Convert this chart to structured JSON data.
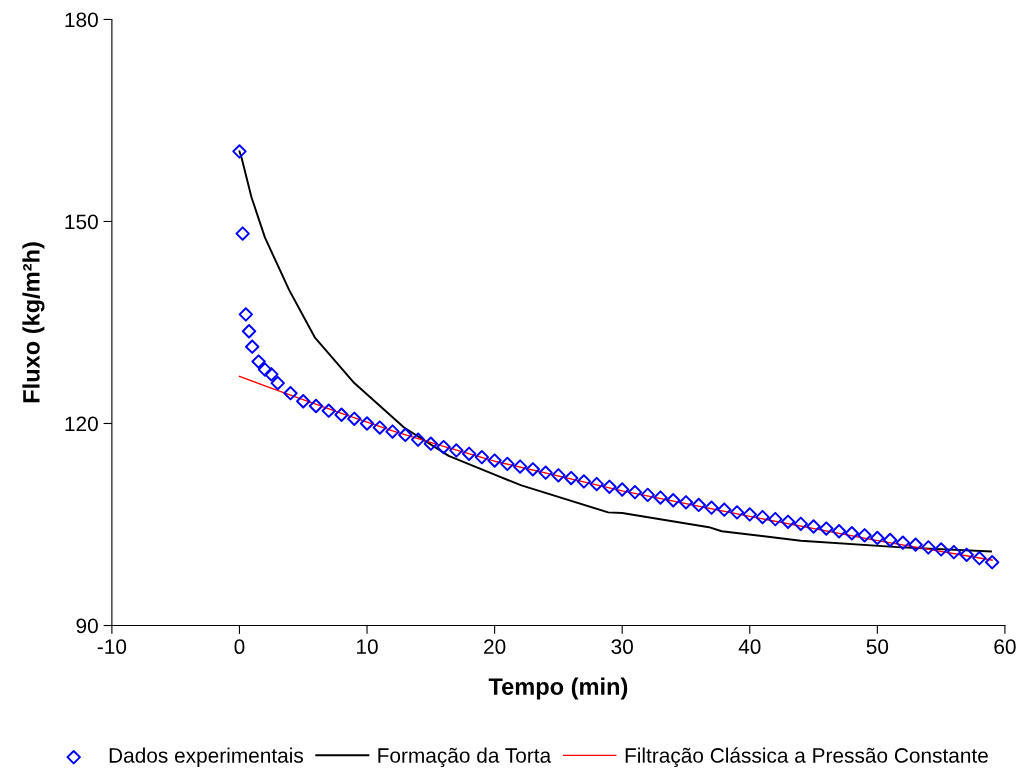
{
  "chart_data": {
    "type": "scatter",
    "xlabel": "Tempo (min)",
    "ylabel": "Fluxo (kg/m²h)",
    "xlim": [
      -10,
      60
    ],
    "xticks": [
      -10,
      0,
      10,
      20,
      30,
      40,
      50,
      60
    ],
    "ylim": [
      90,
      180
    ],
    "yticks": [
      90,
      120,
      150,
      180
    ],
    "grid": false,
    "legend": "bottom",
    "series": [
      {
        "name": "Dados experimentais",
        "marker": "diamond",
        "color": "#0000ff",
        "x": [
          0,
          0.25,
          0.5,
          0.75,
          1,
          1.5,
          2,
          2.5,
          3,
          4,
          5,
          6,
          7,
          8,
          9,
          10,
          11,
          12,
          13,
          14,
          15,
          16,
          17,
          18,
          19,
          20,
          21,
          22,
          23,
          24,
          25,
          26,
          27,
          28,
          29,
          30,
          31,
          32,
          33,
          34,
          35,
          36,
          37,
          38,
          39,
          40,
          41,
          42,
          43,
          44,
          45,
          46,
          47,
          48,
          49,
          50,
          51,
          52,
          53,
          54,
          55,
          56,
          57,
          58,
          59
        ],
        "values": [
          160.4,
          148.2,
          136.2,
          133.7,
          131.4,
          129.2,
          128.0,
          127.3,
          126.0,
          124.5,
          123.3,
          122.6,
          121.9,
          121.3,
          120.7,
          120.0,
          119.4,
          118.8,
          118.3,
          117.6,
          117.0,
          116.5,
          116.0,
          115.5,
          115.0,
          114.5,
          114.0,
          113.6,
          113.2,
          112.7,
          112.3,
          111.9,
          111.4,
          111.0,
          110.6,
          110.2,
          109.8,
          109.4,
          109.0,
          108.6,
          108.3,
          107.9,
          107.5,
          107.2,
          106.8,
          106.5,
          106.1,
          105.8,
          105.4,
          105.1,
          104.7,
          104.4,
          104.0,
          103.7,
          103.4,
          103.0,
          102.7,
          102.3,
          102.0,
          101.6,
          101.3,
          100.9,
          100.5,
          100.0,
          99.4
        ]
      },
      {
        "name": "Formação da Torta",
        "type": "line",
        "marker": "none",
        "color": "#000000",
        "x": [
          0,
          0.16,
          0.94,
          2,
          3.9,
          5.9,
          9,
          12.9,
          16.4,
          20,
          22.1,
          28.9,
          30,
          36.8,
          37.8,
          44,
          51.9,
          58.9
        ],
        "values": [
          160.4,
          159.5,
          153.6,
          147.6,
          139.8,
          132.8,
          126.0,
          119.4,
          115.2,
          112.4,
          110.8,
          106.8,
          106.7,
          104.6,
          104.0,
          102.6,
          101.6,
          101.0
        ]
      },
      {
        "name": "Filtração Clássica a Pressão Constante",
        "type": "line",
        "marker": "none",
        "color": "#ff0000",
        "x": [
          0,
          2,
          4,
          8,
          12,
          16,
          20,
          30,
          40,
          50,
          59
        ],
        "values": [
          127.0,
          125.6,
          124.2,
          121.5,
          118.9,
          116.6,
          114.4,
          110.0,
          106.2,
          102.6,
          99.7
        ]
      }
    ]
  }
}
